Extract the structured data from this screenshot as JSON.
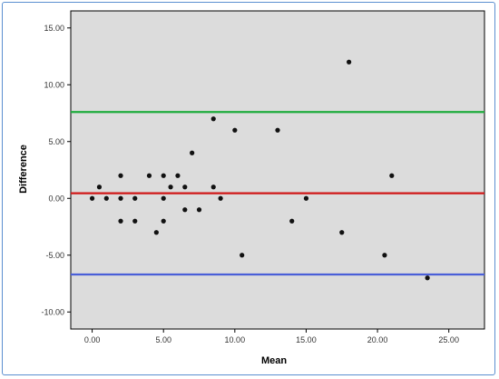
{
  "chart_data": {
    "type": "scatter",
    "xlabel": "Mean",
    "ylabel": "Difference",
    "xlim": [
      -1.5,
      27.5
    ],
    "ylim": [
      -11.5,
      16.5
    ],
    "x_ticks": [
      0,
      5,
      10,
      15,
      20,
      25
    ],
    "y_ticks": [
      -10,
      -5,
      0,
      5,
      10,
      15
    ],
    "x_tick_labels": [
      "0.00",
      "5.00",
      "10.00",
      "15.00",
      "20.00",
      "25.00"
    ],
    "y_tick_labels": [
      "-10.00",
      "-5.00",
      "0.00",
      "5.00",
      "10.00",
      "15.00"
    ],
    "grid": false,
    "background": "#dcdcdc",
    "points": [
      {
        "x": 0,
        "y": 0
      },
      {
        "x": 0.5,
        "y": 1
      },
      {
        "x": 1,
        "y": 0
      },
      {
        "x": 2,
        "y": 2
      },
      {
        "x": 2,
        "y": 0
      },
      {
        "x": 2,
        "y": -2
      },
      {
        "x": 3,
        "y": 0
      },
      {
        "x": 3,
        "y": -2
      },
      {
        "x": 4,
        "y": 2
      },
      {
        "x": 4.5,
        "y": -3
      },
      {
        "x": 5,
        "y": 2
      },
      {
        "x": 5,
        "y": 0
      },
      {
        "x": 5,
        "y": -2
      },
      {
        "x": 5.5,
        "y": 1
      },
      {
        "x": 6,
        "y": 2
      },
      {
        "x": 6.5,
        "y": 1
      },
      {
        "x": 6.5,
        "y": -1
      },
      {
        "x": 7,
        "y": 4
      },
      {
        "x": 7.5,
        "y": -1
      },
      {
        "x": 8.5,
        "y": 7
      },
      {
        "x": 8.5,
        "y": 1
      },
      {
        "x": 9,
        "y": 0
      },
      {
        "x": 10,
        "y": 6
      },
      {
        "x": 10.5,
        "y": -5
      },
      {
        "x": 13,
        "y": 6
      },
      {
        "x": 14,
        "y": -2
      },
      {
        "x": 15,
        "y": 0
      },
      {
        "x": 17.5,
        "y": -3
      },
      {
        "x": 18,
        "y": 12
      },
      {
        "x": 20.5,
        "y": -5
      },
      {
        "x": 21,
        "y": 2
      },
      {
        "x": 23.5,
        "y": -7
      }
    ],
    "reference_lines": [
      {
        "y": 7.6,
        "color": "#1eab3c"
      },
      {
        "y": 0.45,
        "color": "#d01818"
      },
      {
        "y": -6.7,
        "color": "#4a5fd8"
      }
    ]
  }
}
